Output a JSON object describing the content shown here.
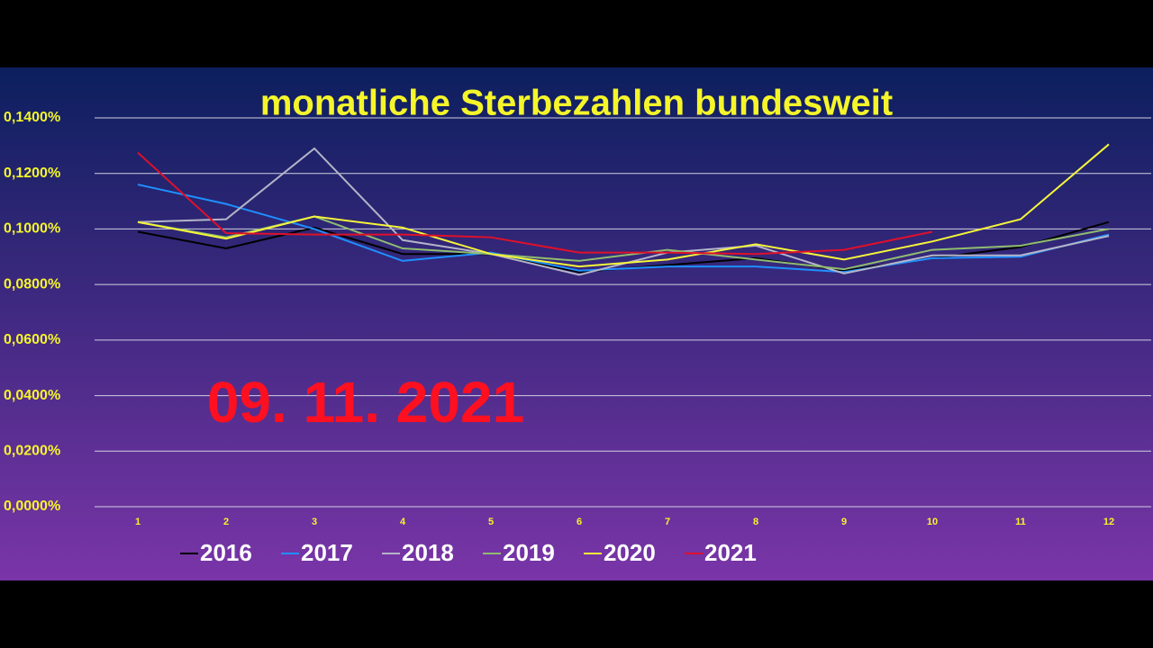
{
  "chart_data": {
    "type": "line",
    "title": "monatliche Sterbezahlen bundesweit",
    "annotations": [
      "09. 11. 2021"
    ],
    "categories": [
      "1",
      "2",
      "3",
      "4",
      "5",
      "6",
      "7",
      "8",
      "9",
      "10",
      "11",
      "12"
    ],
    "series": [
      {
        "name": "2016",
        "color": "#000000",
        "values": [
          0.099,
          0.093,
          0.1005,
          0.091,
          0.091,
          0.0845,
          0.087,
          0.0895,
          0.085,
          0.0895,
          0.0935,
          0.1025
        ]
      },
      {
        "name": "2017",
        "color": "#1e90ff",
        "values": [
          0.116,
          0.109,
          0.1,
          0.0885,
          0.0915,
          0.085,
          0.0865,
          0.0865,
          0.0845,
          0.0895,
          0.09,
          0.098
        ]
      },
      {
        "name": "2018",
        "color": "#b4b4c8",
        "values": [
          0.1025,
          0.1035,
          0.129,
          0.096,
          0.091,
          0.0835,
          0.0915,
          0.094,
          0.084,
          0.0905,
          0.0905,
          0.0975
        ]
      },
      {
        "name": "2019",
        "color": "#8fbc6f",
        "values": [
          0.1025,
          0.097,
          0.1045,
          0.093,
          0.091,
          0.0885,
          0.0925,
          0.089,
          0.0855,
          0.0925,
          0.094,
          0.1
        ]
      },
      {
        "name": "2020",
        "color": "#f5f53a",
        "values": [
          0.1025,
          0.0965,
          0.1045,
          0.1005,
          0.091,
          0.0865,
          0.089,
          0.0945,
          0.089,
          0.0955,
          0.1035,
          0.1305
        ]
      },
      {
        "name": "2021",
        "color": "#e0102a",
        "values": [
          0.1275,
          0.0985,
          0.098,
          0.098,
          0.097,
          0.0915,
          0.0915,
          0.091,
          0.0925,
          0.099,
          null,
          null
        ]
      }
    ],
    "ylim": [
      0,
      0.14
    ],
    "yticks": [
      {
        "value": 0,
        "label": "0,0000%"
      },
      {
        "value": 0.02,
        "label": "0,0200%"
      },
      {
        "value": 0.04,
        "label": "0,0400%"
      },
      {
        "value": 0.06,
        "label": "0,0600%"
      },
      {
        "value": 0.08,
        "label": "0,0800%"
      },
      {
        "value": 0.1,
        "label": "0,1000%"
      },
      {
        "value": 0.12,
        "label": "0,1200%"
      },
      {
        "value": 0.14,
        "label": "0,1400%"
      }
    ],
    "grid": true,
    "legend": "bottom"
  }
}
